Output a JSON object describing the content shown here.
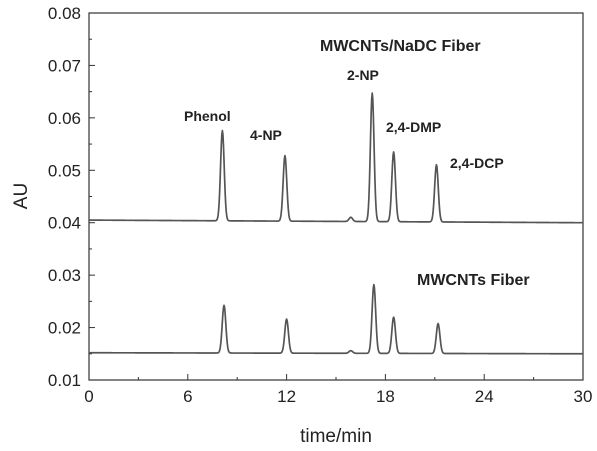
{
  "chart_data": {
    "type": "line",
    "xlabel": "time/min",
    "ylabel": "AU",
    "xlim": [
      0,
      30
    ],
    "ylim": [
      0.01,
      0.08
    ],
    "x_ticks": [
      "0",
      "6",
      "12",
      "18",
      "24",
      "30"
    ],
    "y_ticks": [
      "0.01",
      "0.02",
      "0.03",
      "0.04",
      "0.05",
      "0.06",
      "0.07",
      "0.08"
    ],
    "x_tick_values": [
      0,
      6,
      12,
      18,
      24,
      30
    ],
    "y_tick_values": [
      0.01,
      0.02,
      0.03,
      0.04,
      0.05,
      0.06,
      0.07,
      0.08
    ],
    "grid": false,
    "line_color": "#555555",
    "series": [
      {
        "name": "MWCNTs/NaDC Fiber",
        "baseline": 0.0405,
        "baseline_end": 0.04,
        "peaks": [
          {
            "label": "Phenol",
            "x": 8.1,
            "y": 0.0577
          },
          {
            "label": "4-NP",
            "x": 11.9,
            "y": 0.053
          },
          {
            "label": "",
            "x": 15.9,
            "y": 0.0413
          },
          {
            "label": "2-NP",
            "x": 17.2,
            "y": 0.065
          },
          {
            "label": "2,4-DMP",
            "x": 18.5,
            "y": 0.0538
          },
          {
            "label": "2,4-DCP",
            "x": 21.1,
            "y": 0.0514
          }
        ]
      },
      {
        "name": "MWCNTs Fiber",
        "baseline": 0.0152,
        "baseline_end": 0.015,
        "peaks": [
          {
            "label": "",
            "x": 8.2,
            "y": 0.0243
          },
          {
            "label": "",
            "x": 12.0,
            "y": 0.0217
          },
          {
            "label": "",
            "x": 15.9,
            "y": 0.0157
          },
          {
            "label": "",
            "x": 17.3,
            "y": 0.0283
          },
          {
            "label": "",
            "x": 18.5,
            "y": 0.0221
          },
          {
            "label": "",
            "x": 21.2,
            "y": 0.0209
          }
        ]
      }
    ]
  }
}
